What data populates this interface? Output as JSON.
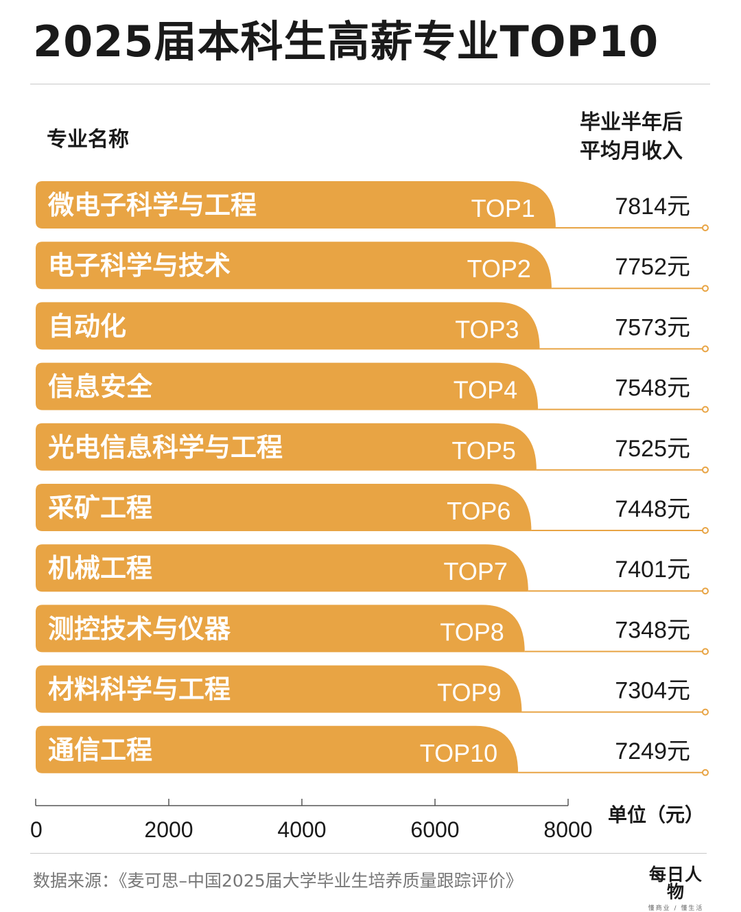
{
  "title": "2025届本科生高薪专业TOP10",
  "columns": {
    "left_header": "专业名称",
    "right_header_line1": "毕业半年后",
    "right_header_line2": "平均月收入"
  },
  "colors": {
    "bar": "#e8a444",
    "bar_text": "#ffffff",
    "accent_line": "#e8a444"
  },
  "chart_data": {
    "type": "bar",
    "orientation": "horizontal",
    "title": "2025届本科生高薪专业TOP10",
    "categories": [
      "微电子科学与工程",
      "电子科学与技术",
      "自动化",
      "信息安全",
      "光电信息科学与工程",
      "采矿工程",
      "机械工程",
      "测控技术与仪器",
      "材料科学与工程",
      "通信工程"
    ],
    "ranks": [
      "TOP1",
      "TOP2",
      "TOP3",
      "TOP4",
      "TOP5",
      "TOP6",
      "TOP7",
      "TOP8",
      "TOP9",
      "TOP10"
    ],
    "values": [
      7814,
      7752,
      7573,
      7548,
      7525,
      7448,
      7401,
      7348,
      7304,
      7249
    ],
    "value_labels": [
      "7814元",
      "7752元",
      "7573元",
      "7548元",
      "7525元",
      "7448元",
      "7401元",
      "7348元",
      "7304元",
      "7249元"
    ],
    "xlim": [
      0,
      8000
    ],
    "xticks": [
      "0",
      "2000",
      "4000",
      "6000",
      "8000"
    ],
    "xlabel": "单位（元）",
    "grid": false
  },
  "axis": {
    "unit_label": "单位（元）"
  },
  "footer": {
    "source": "数据来源：《麦可思–中国2025届大学毕业生培养质量跟踪评价》",
    "logo_main": "每日人物",
    "logo_sub": "懂商业 / 懂生活"
  }
}
